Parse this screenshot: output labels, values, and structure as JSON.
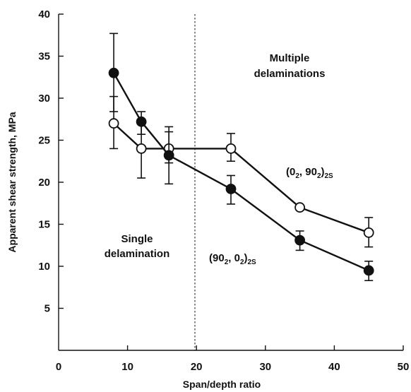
{
  "chart_data": {
    "type": "line",
    "xlabel": "Span/depth ratio",
    "ylabel": "Apparent shear strength, MPa",
    "xlim": [
      0,
      50
    ],
    "ylim": [
      0,
      40
    ],
    "xticks": [
      0,
      10,
      20,
      30,
      40,
      50
    ],
    "yticks": [
      5,
      10,
      15,
      20,
      25,
      30,
      35,
      40
    ],
    "divider_x": 20,
    "grid": false,
    "series": [
      {
        "name": "(02, 902)2S",
        "label_parts": [
          "(0",
          "2",
          ", 90",
          "2",
          ")",
          "2S"
        ],
        "marker": "open-circle",
        "x": [
          8,
          12,
          16,
          25,
          35,
          45
        ],
        "y": [
          27,
          24,
          24,
          24,
          17,
          14
        ],
        "err_low": [
          24,
          20.5,
          19.8,
          22.5,
          null,
          12.3
        ],
        "err_high": [
          30.2,
          27.3,
          26.6,
          25.8,
          null,
          15.8
        ]
      },
      {
        "name": "(902, 02)2S",
        "label_parts": [
          "(90",
          "2",
          ", 0",
          "2",
          ")",
          "2S"
        ],
        "marker": "filled-circle",
        "x": [
          8,
          12,
          16,
          25,
          35,
          45
        ],
        "y": [
          33,
          27.2,
          23.2,
          19.2,
          13.1,
          9.5
        ],
        "err_low": [
          28.4,
          25.7,
          22.3,
          17.4,
          11.9,
          8.3
        ],
        "err_high": [
          37.7,
          28.4,
          26,
          20.8,
          14.2,
          10.6
        ]
      }
    ],
    "annotations": {
      "multiple": [
        "Multiple",
        "delaminations"
      ],
      "single": [
        "Single",
        "delamination"
      ]
    }
  }
}
